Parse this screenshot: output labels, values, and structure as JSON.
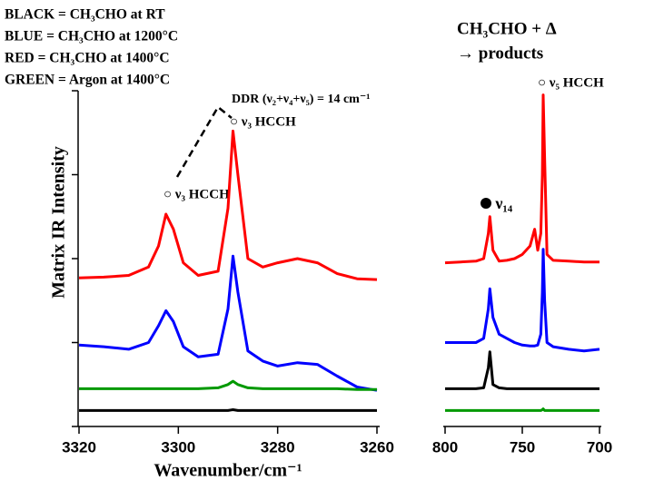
{
  "chart_data": [
    {
      "type": "line",
      "legend_lines": [
        "BLACK = CH₃CHO at RT",
        "BLUE = CH₃CHO at 1200°C",
        "RED = CH₃CHO at 1400°C",
        "GREEN = Argon at 1400°C"
      ],
      "y_label": "Matrix IR Intensity",
      "x_label": "Wavenumber/cm⁻¹",
      "annotations": [
        "DDR (ν₂+ν₄+ν₅) = 14 cm⁻¹",
        "○ ν₃ HCCH",
        "○ ν₃ HCCH"
      ],
      "xlim": [
        3320,
        3260
      ],
      "xticks": [
        3320,
        3300,
        3280,
        3260
      ],
      "ylim": [
        0,
        4
      ],
      "yticks": [
        0,
        1,
        2,
        3,
        4
      ],
      "x": [
        3320,
        3315,
        3310,
        3306,
        3304,
        3302.5,
        3301,
        3299,
        3296,
        3292,
        3290,
        3289,
        3288,
        3286,
        3283,
        3280,
        3276,
        3272,
        3268,
        3264,
        3260
      ],
      "series": [
        {
          "color": "#ff0000",
          "values": [
            1.77,
            1.78,
            1.8,
            1.9,
            2.15,
            2.53,
            2.35,
            1.95,
            1.8,
            1.85,
            2.6,
            3.52,
            3.0,
            2.0,
            1.9,
            1.95,
            2.0,
            1.95,
            1.82,
            1.76,
            1.75
          ]
        },
        {
          "color": "#0000ff",
          "values": [
            0.97,
            0.95,
            0.92,
            1.0,
            1.2,
            1.38,
            1.25,
            0.95,
            0.83,
            0.86,
            1.4,
            2.03,
            1.6,
            0.9,
            0.78,
            0.72,
            0.76,
            0.74,
            0.6,
            0.47,
            0.43
          ]
        },
        {
          "color": "#009900",
          "values": [
            0.45,
            0.45,
            0.45,
            0.45,
            0.45,
            0.45,
            0.45,
            0.45,
            0.45,
            0.46,
            0.5,
            0.54,
            0.5,
            0.46,
            0.45,
            0.45,
            0.45,
            0.45,
            0.45,
            0.44,
            0.44
          ]
        },
        {
          "color": "#000000",
          "values": [
            0.19,
            0.19,
            0.19,
            0.19,
            0.19,
            0.19,
            0.19,
            0.19,
            0.19,
            0.19,
            0.19,
            0.2,
            0.19,
            0.19,
            0.19,
            0.19,
            0.19,
            0.19,
            0.19,
            0.19,
            0.19
          ]
        }
      ]
    },
    {
      "type": "line",
      "header": [
        "CH₃CHO + Δ",
        "→ products"
      ],
      "annotations": [
        "○ ν₅ HCCH",
        "● ν₁₄"
      ],
      "xlim": [
        800,
        700
      ],
      "xticks": [
        800,
        750,
        700
      ],
      "ylim": [
        0,
        4
      ],
      "x": [
        800,
        790,
        780,
        775,
        772,
        771,
        769,
        765,
        760,
        755,
        750,
        745,
        742,
        740,
        738,
        737,
        736.5,
        735.5,
        734,
        730,
        720,
        710,
        700
      ],
      "series": [
        {
          "color": "#ff0000",
          "values": [
            1.95,
            1.96,
            1.97,
            2.0,
            2.3,
            2.5,
            2.1,
            1.97,
            1.98,
            2.0,
            2.05,
            2.15,
            2.35,
            2.1,
            2.3,
            3.0,
            3.95,
            3.2,
            2.05,
            1.98,
            1.97,
            1.96,
            1.96
          ]
        },
        {
          "color": "#0000ff",
          "values": [
            1.0,
            1.0,
            1.0,
            1.05,
            1.4,
            1.64,
            1.3,
            1.1,
            1.05,
            1.0,
            0.97,
            0.96,
            0.96,
            0.97,
            1.1,
            1.6,
            2.11,
            1.5,
            1.0,
            0.95,
            0.92,
            0.9,
            0.92
          ]
        },
        {
          "color": "#000000",
          "values": [
            0.45,
            0.45,
            0.45,
            0.46,
            0.7,
            0.89,
            0.5,
            0.46,
            0.45,
            0.45,
            0.45,
            0.45,
            0.45,
            0.45,
            0.45,
            0.45,
            0.45,
            0.45,
            0.45,
            0.45,
            0.45,
            0.45,
            0.45
          ]
        },
        {
          "color": "#009900",
          "values": [
            0.19,
            0.19,
            0.19,
            0.19,
            0.19,
            0.19,
            0.19,
            0.19,
            0.19,
            0.19,
            0.19,
            0.19,
            0.19,
            0.19,
            0.19,
            0.2,
            0.21,
            0.19,
            0.19,
            0.19,
            0.19,
            0.19,
            0.19
          ]
        }
      ]
    }
  ]
}
